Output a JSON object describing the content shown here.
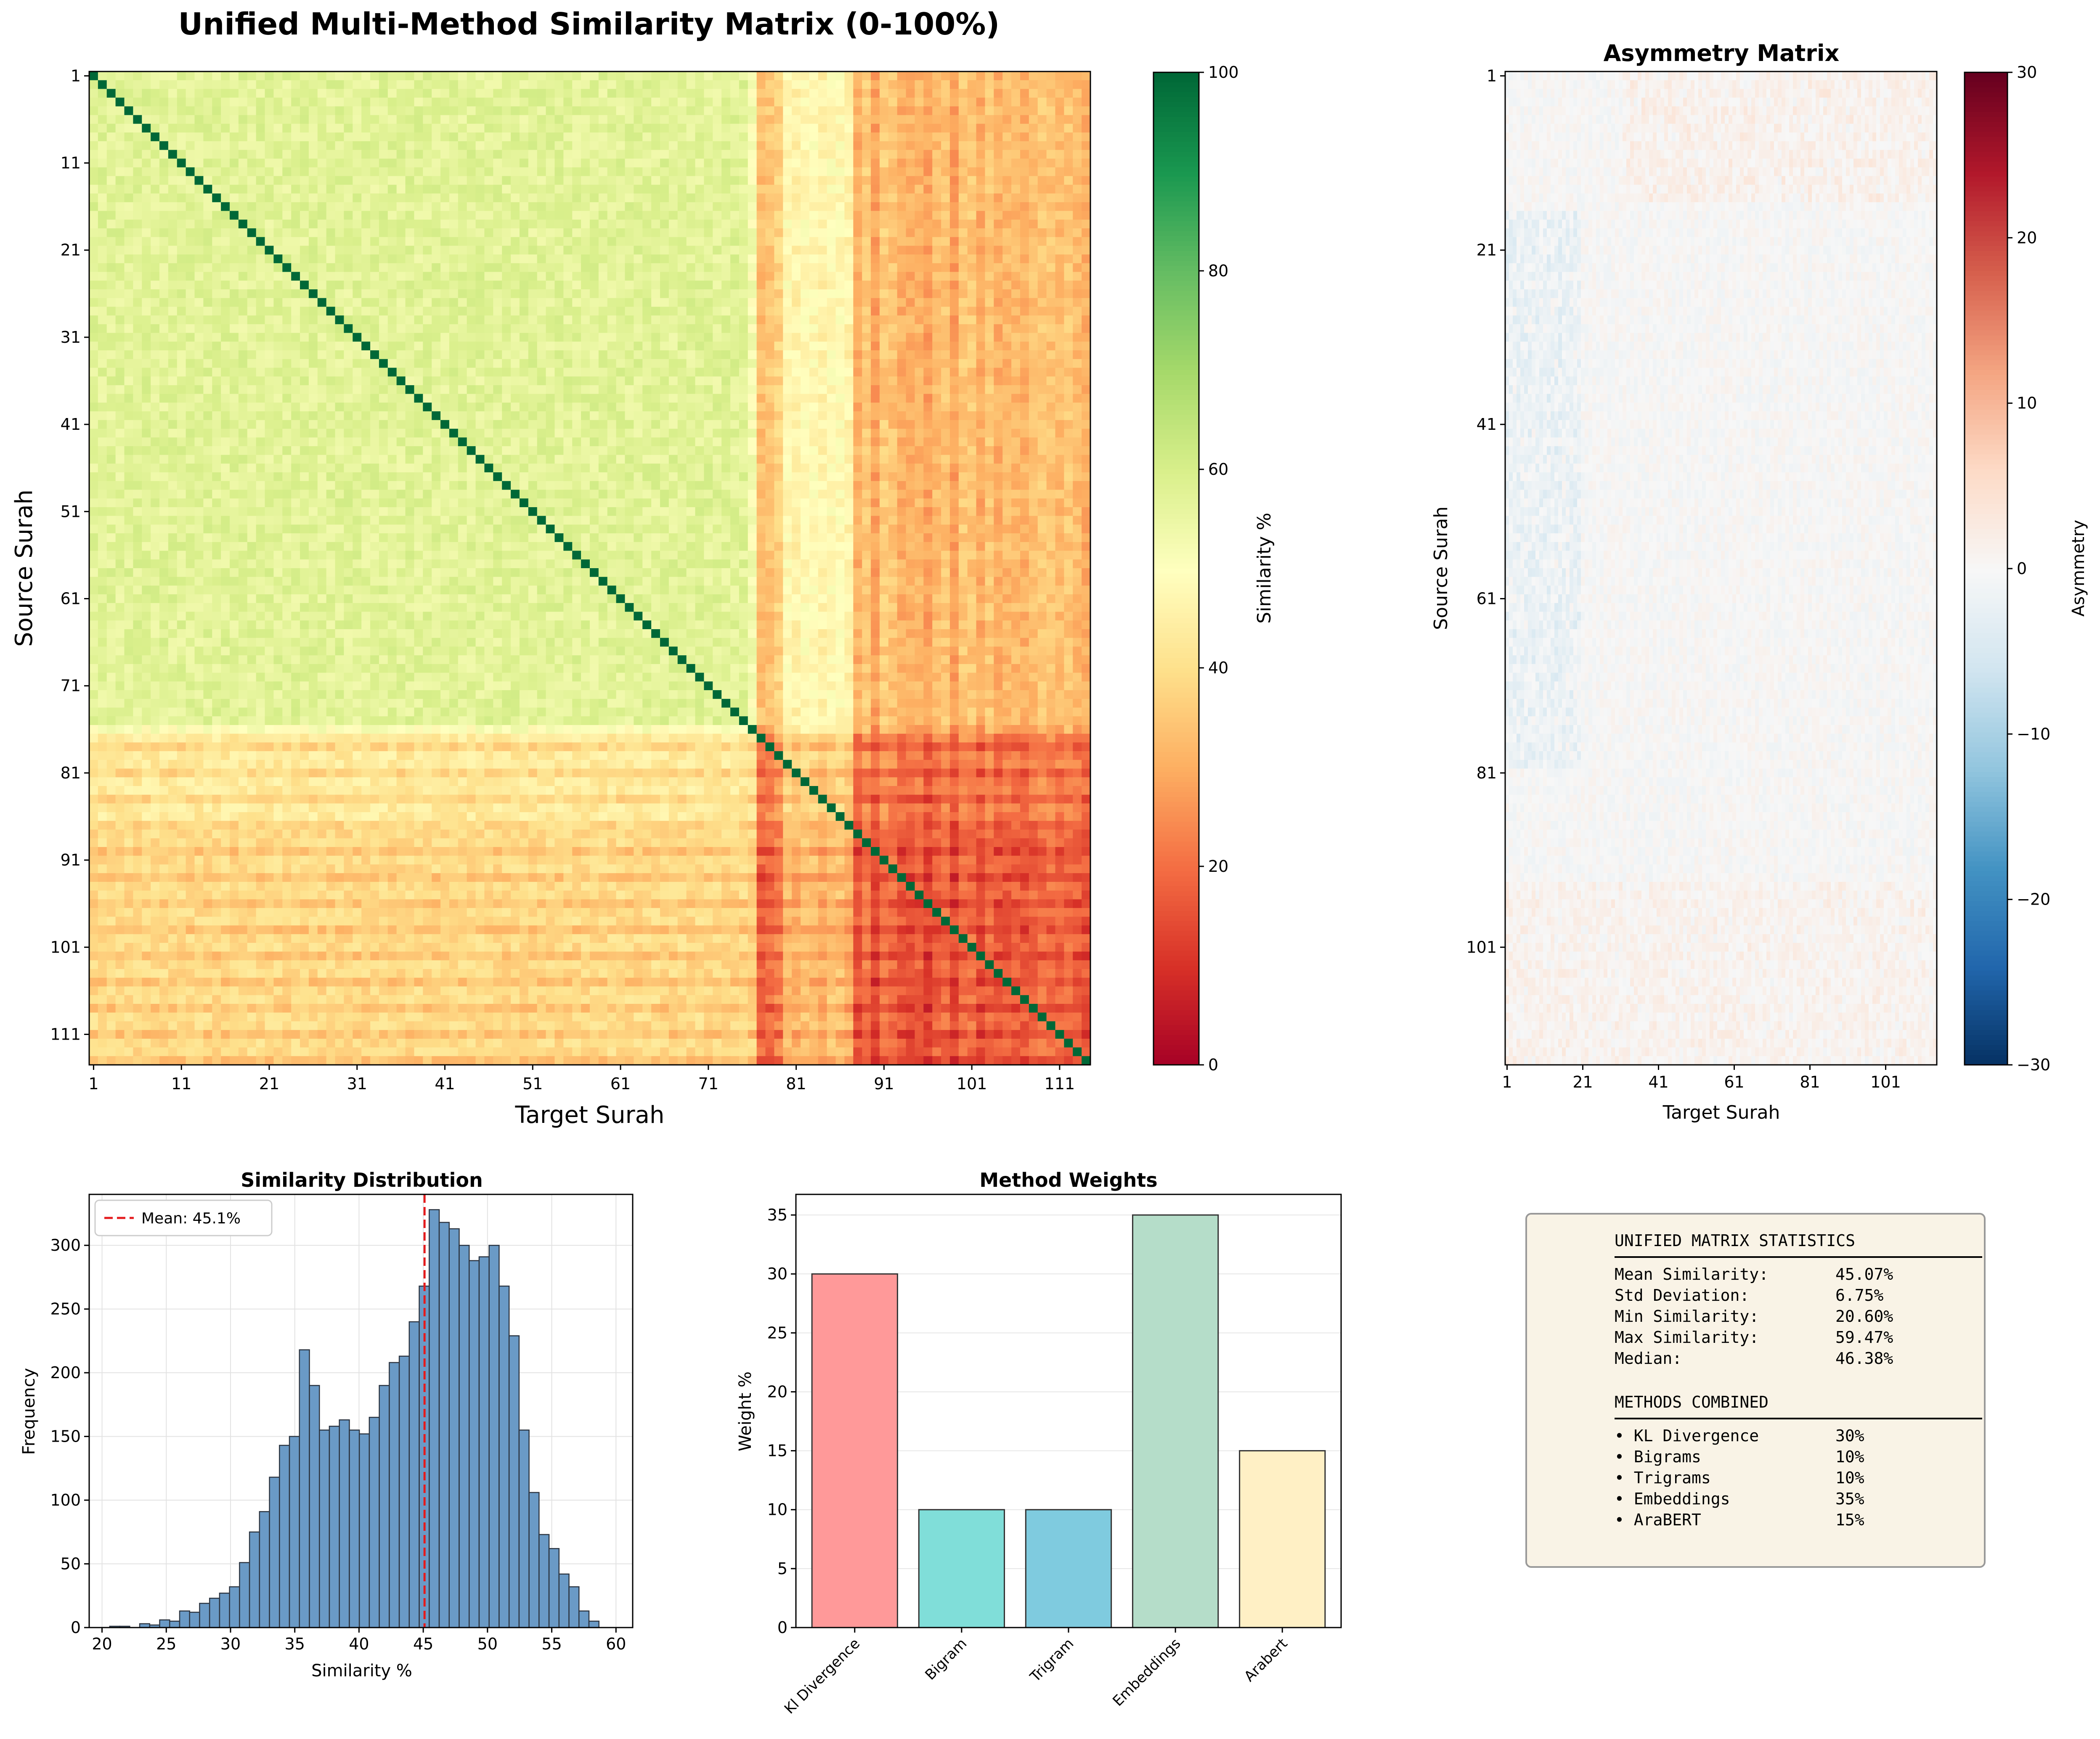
{
  "title": "Unified Multi-Method Similarity Matrix (0-100%)",
  "chart_data": [
    {
      "type": "heatmap",
      "title": "",
      "xlabel": "Target Surah",
      "ylabel": "Source Surah",
      "n": 114,
      "x_ticks": [
        "1",
        "11",
        "21",
        "31",
        "41",
        "51",
        "61",
        "71",
        "81",
        "91",
        "101",
        "111"
      ],
      "y_ticks": [
        "1",
        "11",
        "21",
        "31",
        "41",
        "51",
        "61",
        "71",
        "81",
        "91",
        "101",
        "111"
      ],
      "colorbar": {
        "label": "Similarity %",
        "range": [
          0,
          100
        ],
        "ticks": [
          "0",
          "20",
          "40",
          "60",
          "80",
          "100"
        ],
        "colormap": "RdYlGn"
      },
      "diagonal_value": 100,
      "low_similarity_columns": [
        77,
        78,
        79,
        88,
        89,
        90,
        91,
        92,
        93,
        94,
        95,
        96,
        97,
        98,
        99,
        100,
        101,
        102,
        103,
        104,
        105,
        106,
        107,
        108,
        109,
        110,
        111,
        112,
        113,
        114
      ]
    },
    {
      "type": "heatmap",
      "title": "Asymmetry Matrix",
      "xlabel": "Target Surah",
      "ylabel": "Source Surah",
      "n": 114,
      "x_ticks": [
        "1",
        "21",
        "41",
        "61",
        "81",
        "101"
      ],
      "y_ticks": [
        "1",
        "21",
        "41",
        "61",
        "81",
        "101"
      ],
      "colorbar": {
        "label": "Asymmetry",
        "range": [
          -30,
          30
        ],
        "ticks": [
          "30",
          "20",
          "10",
          "0",
          "−10",
          "−20",
          "−30"
        ],
        "colormap": "RdBu_r"
      }
    },
    {
      "type": "bar",
      "title": "Similarity Distribution",
      "xlabel": "Similarity %",
      "ylabel": "Frequency",
      "xlim": [
        19,
        61.3
      ],
      "ylim": [
        0,
        340
      ],
      "x_ticks": [
        "20",
        "25",
        "30",
        "35",
        "40",
        "45",
        "50",
        "55",
        "60"
      ],
      "y_ticks": [
        "0",
        "50",
        "100",
        "150",
        "200",
        "250",
        "300"
      ],
      "bin_start": 20.6,
      "bin_width": 0.777,
      "values": [
        1,
        1,
        0,
        3,
        2,
        6,
        5,
        13,
        12,
        19,
        23,
        27,
        32,
        51,
        75,
        91,
        118,
        143,
        150,
        218,
        190,
        155,
        158,
        163,
        155,
        152,
        165,
        190,
        208,
        213,
        240,
        268,
        328,
        318,
        313,
        300,
        288,
        291,
        300,
        268,
        229,
        155,
        106,
        73,
        62,
        42,
        32,
        13,
        5
      ],
      "mean": 45.1,
      "legend": "Mean: 45.1%",
      "bar_color": "#6a9ac6"
    },
    {
      "type": "bar",
      "title": "Method Weights",
      "xlabel": "",
      "ylabel": "Weight %",
      "ylim": [
        0,
        36.75
      ],
      "y_ticks": [
        "0",
        "5",
        "10",
        "15",
        "20",
        "25",
        "30",
        "35"
      ],
      "categories": [
        "Kl Divergence",
        "Bigram",
        "Trigram",
        "Embeddings",
        "Arabert"
      ],
      "values": [
        30,
        10,
        10,
        35,
        15
      ],
      "colors": [
        "#ff9999",
        "#80ded9",
        "#7fcbdf",
        "#b5ddc9",
        "#fff0c5"
      ]
    }
  ],
  "stats": {
    "heading": "UNIFIED MATRIX STATISTICS",
    "rows": [
      {
        "label": "Mean Similarity:",
        "value": "45.07%"
      },
      {
        "label": "Std Deviation:",
        "value": "6.75%"
      },
      {
        "label": "Min Similarity:",
        "value": "20.60%"
      },
      {
        "label": "Max Similarity:",
        "value": "59.47%"
      },
      {
        "label": "Median:",
        "value": "46.38%"
      }
    ],
    "methods_heading": "METHODS COMBINED",
    "methods": [
      {
        "label": "• KL Divergence",
        "value": "30%"
      },
      {
        "label": "• Bigrams",
        "value": "10%"
      },
      {
        "label": "• Trigrams",
        "value": "10%"
      },
      {
        "label": "• Embeddings",
        "value": "35%"
      },
      {
        "label": "• AraBERT",
        "value": "15%"
      }
    ]
  }
}
